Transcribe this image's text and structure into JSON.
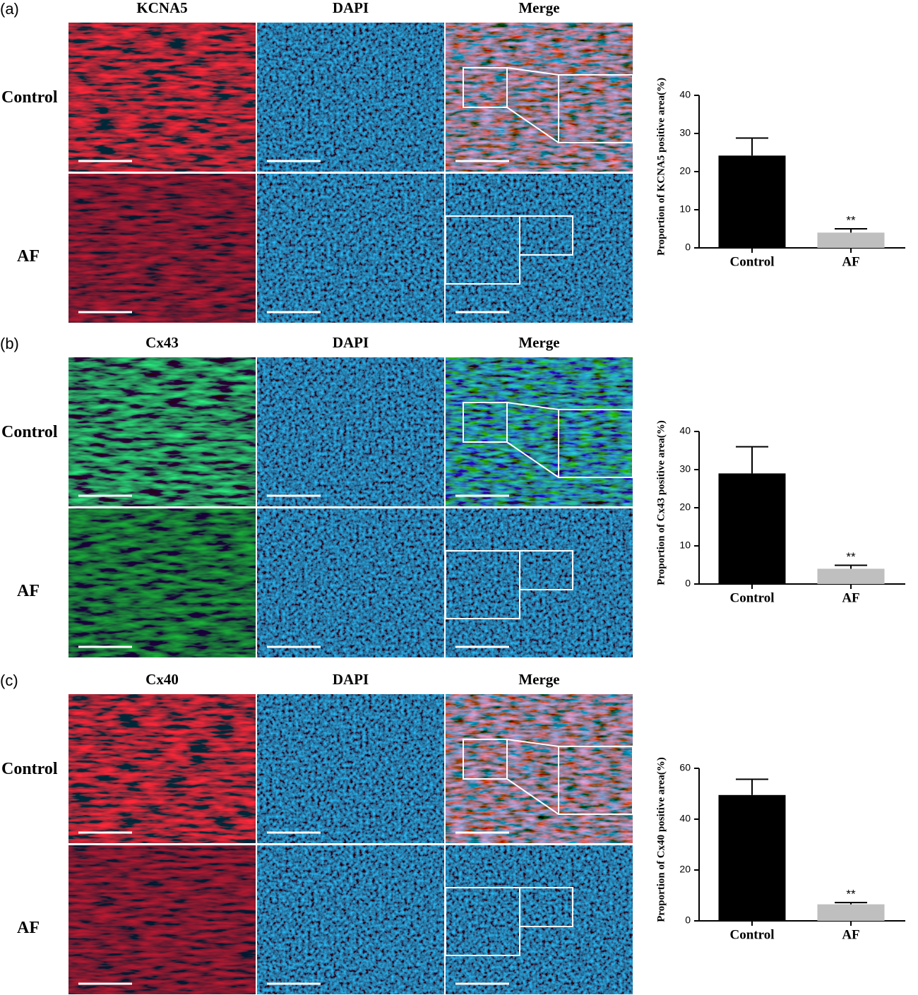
{
  "panels": [
    {
      "label": "(a)",
      "columns": [
        "KCNA5",
        "DAPI",
        "Merge"
      ],
      "rows": [
        "Control",
        "AF"
      ]
    },
    {
      "label": "(b)",
      "columns": [
        "Cx43",
        "DAPI",
        "Merge"
      ],
      "rows": [
        "Control",
        "AF"
      ]
    },
    {
      "label": "(c)",
      "columns": [
        "Cx40",
        "DAPI",
        "Merge"
      ],
      "rows": [
        "Control",
        "AF"
      ]
    }
  ],
  "chart_data": [
    {
      "type": "bar",
      "ylabel": "Proportion of KCNA5 positive area(%)",
      "categories": [
        "Control",
        "AF"
      ],
      "values": [
        24.2,
        4.0
      ],
      "errors": [
        4.6,
        1.0
      ],
      "colors": [
        "#000000",
        "#bfbfbf"
      ],
      "significance": [
        null,
        "**"
      ],
      "ylim": [
        0,
        40
      ],
      "yticks": [
        0,
        10,
        20,
        30,
        40
      ]
    },
    {
      "type": "bar",
      "ylabel": "Proportion of Cx43 positive area(%)",
      "categories": [
        "Control",
        "AF"
      ],
      "values": [
        29.0,
        4.0
      ],
      "errors": [
        7.0,
        0.9
      ],
      "colors": [
        "#000000",
        "#bfbfbf"
      ],
      "significance": [
        null,
        "**"
      ],
      "ylim": [
        0,
        40
      ],
      "yticks": [
        0,
        10,
        20,
        30,
        40
      ]
    },
    {
      "type": "bar",
      "ylabel": "Proportion of Cx40 positive area(%)",
      "categories": [
        "Control",
        "AF"
      ],
      "values": [
        49.5,
        6.5
      ],
      "errors": [
        6.2,
        0.7
      ],
      "colors": [
        "#000000",
        "#bfbfbf"
      ],
      "significance": [
        null,
        "**"
      ],
      "ylim": [
        0,
        60
      ],
      "yticks": [
        0,
        20,
        40,
        60
      ]
    }
  ]
}
